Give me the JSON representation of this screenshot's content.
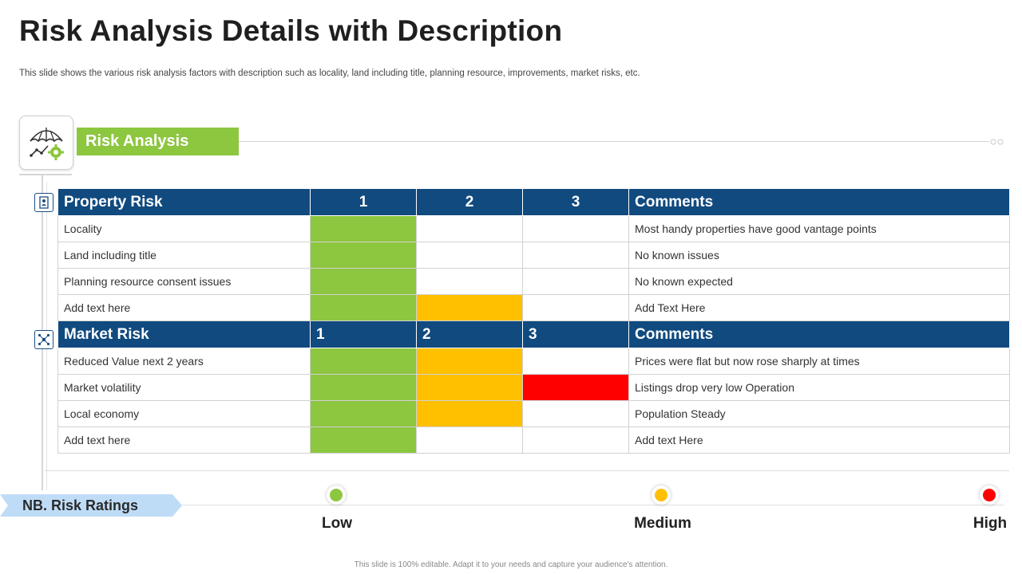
{
  "header": {
    "title": "Risk Analysis Details with Description",
    "subtitle": "This slide shows the various risk analysis factors with description such as locality, land including title, planning resource, improvements, market risks, etc."
  },
  "section_label": "Risk Analysis",
  "icons": {
    "main": "umbrella-growth-gear-icon",
    "property": "document-person-icon",
    "market": "network-icon"
  },
  "colors": {
    "header_blue": "#104a7f",
    "green": "#8dc63f",
    "amber": "#ffc000",
    "red": "#ff0000",
    "tag_blue": "#bfdcf7"
  },
  "property": {
    "header": [
      "Property Risk",
      "1",
      "2",
      "3",
      "Comments"
    ],
    "rows": [
      {
        "label": "Locality",
        "rating": 1,
        "comment": "Most handy properties have good vantage points"
      },
      {
        "label": "Land including title",
        "rating": 1,
        "comment": "No known issues"
      },
      {
        "label": "Planning resource consent issues",
        "rating": 1,
        "comment": "No known expected"
      },
      {
        "label": "Add text here",
        "rating": 2,
        "comment": "Add Text Here"
      }
    ]
  },
  "market": {
    "header": [
      "Market Risk",
      "1",
      "2",
      "3",
      "Comments"
    ],
    "rows": [
      {
        "label": "Reduced Value next 2 years",
        "rating": 2,
        "comment": "Prices were flat but now rose sharply at times"
      },
      {
        "label": "Market volatility",
        "rating": 3,
        "comment": "Listings drop very low Operation"
      },
      {
        "label": "Local economy",
        "rating": 2,
        "comment": "Population Steady"
      },
      {
        "label": "Add text here",
        "rating": 1,
        "comment": "Add text Here"
      }
    ]
  },
  "ratings": {
    "title": "NB. Risk Ratings",
    "levels": [
      {
        "label": "Low",
        "color": "#8dc63f"
      },
      {
        "label": "Medium",
        "color": "#ffc000"
      },
      {
        "label": "High",
        "color": "#ff0000"
      }
    ]
  },
  "footer": "This slide is 100% editable. Adapt it to your needs and capture your audience's attention."
}
